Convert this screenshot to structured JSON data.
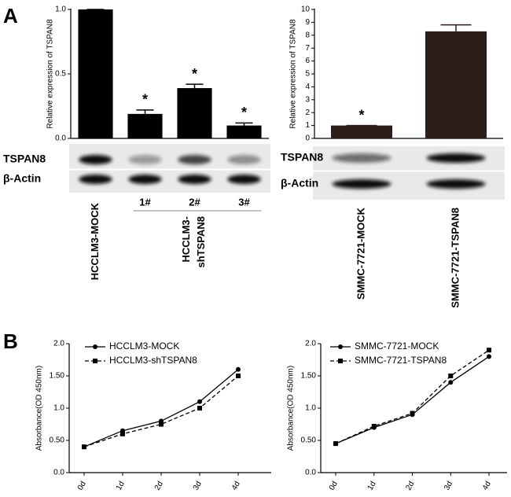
{
  "panel_labels": [
    "A",
    "B"
  ],
  "chart_data": [
    {
      "type": "bar",
      "y_label": "Relative expression of TSPAN8",
      "categories": [
        "HCCLM3-MOCK",
        "1#",
        "2#",
        "3#"
      ],
      "values": [
        1.0,
        0.19,
        0.39,
        0.1
      ],
      "errors": [
        0,
        0.03,
        0.03,
        0.02
      ],
      "color": "#000000",
      "ylim": [
        0,
        1
      ],
      "yticks": [
        {
          "value": 0,
          "label": "0.0"
        },
        {
          "value": 0.5,
          "label": "0.5"
        },
        {
          "value": 1,
          "label": "1.0"
        }
      ],
      "annotations": [
        {
          "category": "1#",
          "text": "*"
        },
        {
          "category": "2#",
          "text": "*"
        },
        {
          "category": "3#",
          "text": "*"
        }
      ],
      "blot_labels": [
        "TSPAN8",
        "β-Actin"
      ],
      "group": {
        "categories": [
          "1#",
          "2#",
          "3#"
        ],
        "label": [
          "HCCLM3-",
          "shTSPAN8"
        ]
      }
    },
    {
      "type": "bar",
      "y_label": "Relative expression of TSPAN8",
      "categories": [
        "SMMC-7721-MOCK",
        "SMMC-7721-TSPAN8"
      ],
      "values": [
        1.0,
        8.3
      ],
      "errors": [
        0,
        0.5
      ],
      "color": "#2b1d19",
      "ylim": [
        0,
        10
      ],
      "yticks": [
        0,
        1,
        2,
        3,
        4,
        5,
        6,
        7,
        8,
        9,
        10
      ],
      "annotations": [
        {
          "category": "SMMC-7721-MOCK",
          "text": "*"
        }
      ],
      "blot_labels": [
        "TSPAN8",
        "β-Actin"
      ]
    },
    {
      "type": "line",
      "y_label": "Absorbance(OD 450nm)",
      "categories": [
        "0d",
        "1d",
        "2d",
        "3d",
        "4d"
      ],
      "series": [
        {
          "name": "HCCLM3-MOCK",
          "color": "#000000",
          "marker": "circle",
          "dashed": false,
          "values": [
            0.4,
            0.65,
            0.8,
            1.1,
            1.6
          ]
        },
        {
          "name": "HCCLM3-shTSPAN8",
          "color": "#000000",
          "marker": "square",
          "dashed": true,
          "values": [
            0.4,
            0.6,
            0.75,
            1.0,
            1.5
          ]
        }
      ],
      "ylim": [
        0,
        2
      ],
      "yticks": [
        {
          "value": 0,
          "label": "0.0"
        },
        {
          "value": 0.5,
          "label": "0.50"
        },
        {
          "value": 1,
          "label": "1.0"
        },
        {
          "value": 1.5,
          "label": "1.50"
        },
        {
          "value": 2,
          "label": "2.0"
        }
      ],
      "legend": "upper left"
    },
    {
      "type": "line",
      "y_label": "Absorbance(OD 450nm)",
      "categories": [
        "0d",
        "1d",
        "2d",
        "3d",
        "4d"
      ],
      "series": [
        {
          "name": "SMMC-7721-MOCK",
          "color": "#000000",
          "marker": "circle",
          "dashed": false,
          "values": [
            0.45,
            0.7,
            0.9,
            1.4,
            1.8
          ]
        },
        {
          "name": "SMMC-7721-TSPAN8",
          "color": "#000000",
          "marker": "square",
          "dashed": true,
          "values": [
            0.45,
            0.72,
            0.92,
            1.5,
            1.9
          ]
        }
      ],
      "ylim": [
        0,
        2
      ],
      "yticks": [
        {
          "value": 0,
          "label": "0.0"
        },
        {
          "value": 0.5,
          "label": "0.50"
        },
        {
          "value": 1,
          "label": "1.0"
        },
        {
          "value": 1.5,
          "label": "1.50"
        },
        {
          "value": 2,
          "label": "2.0"
        }
      ],
      "legend": "upper left"
    }
  ]
}
